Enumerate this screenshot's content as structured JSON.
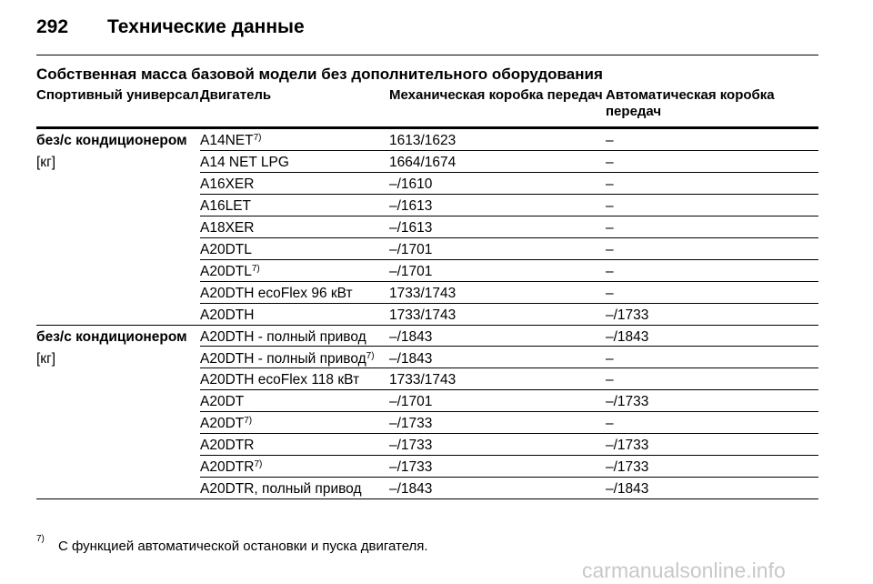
{
  "header": {
    "page_number": "292",
    "title": "Технические данные"
  },
  "section_title": "Собственная масса базовой модели без дополнительного оборудования",
  "table": {
    "columns": [
      "Спортивный универсал",
      "Двигатель",
      "Механическая коробка передач",
      "Автоматическая коробка передач"
    ],
    "groups": [
      {
        "label": "без/с кондиционером",
        "unit": "[кг]",
        "rows": [
          {
            "engine": "A14NET",
            "note": "7)",
            "manual": "1613/1623",
            "auto": "–"
          },
          {
            "engine": "A14 NET LPG",
            "manual": "1664/1674",
            "auto": "–"
          },
          {
            "engine": "A16XER",
            "manual": "–/1610",
            "auto": "–"
          },
          {
            "engine": "A16LET",
            "manual": "–/1613",
            "auto": "–"
          },
          {
            "engine": "A18XER",
            "manual": "–/1613",
            "auto": "–"
          },
          {
            "engine": "A20DTL",
            "manual": "–/1701",
            "auto": "–"
          },
          {
            "engine": "A20DTL",
            "note": "7)",
            "manual": "–/1701",
            "auto": "–"
          },
          {
            "engine": "A20DTH ecoFlex 96 кВт",
            "manual": "1733/1743",
            "auto": "–"
          },
          {
            "engine": "A20DTH",
            "manual": "1733/1743",
            "auto": "–/1733"
          }
        ]
      },
      {
        "label": "без/с кондиционером",
        "unit": "[кг]",
        "rows": [
          {
            "engine": "A20DTH - полный привод",
            "manual": "–/1843",
            "auto": "–/1843"
          },
          {
            "engine": "A20DTH - полный привод",
            "note": "7)",
            "manual": "–/1843",
            "auto": "–"
          },
          {
            "engine": "A20DTH ecoFlex 118 кВт",
            "manual": "1733/1743",
            "auto": "–"
          },
          {
            "engine": "A20DT",
            "manual": "–/1701",
            "auto": "–/1733"
          },
          {
            "engine": "A20DT",
            "note": "7)",
            "manual": "–/1733",
            "auto": "–"
          },
          {
            "engine": "A20DTR",
            "manual": "–/1733",
            "auto": "–/1733"
          },
          {
            "engine": "A20DTR",
            "note": "7)",
            "manual": "–/1733",
            "auto": "–/1733"
          },
          {
            "engine": "A20DTR, полный привод",
            "manual": "–/1843",
            "auto": "–/1843"
          }
        ]
      }
    ]
  },
  "footnote": {
    "marker": "7)",
    "text": "С функцией автоматической остановки и пуска двигателя."
  },
  "watermark": "carmanualsonline.info"
}
